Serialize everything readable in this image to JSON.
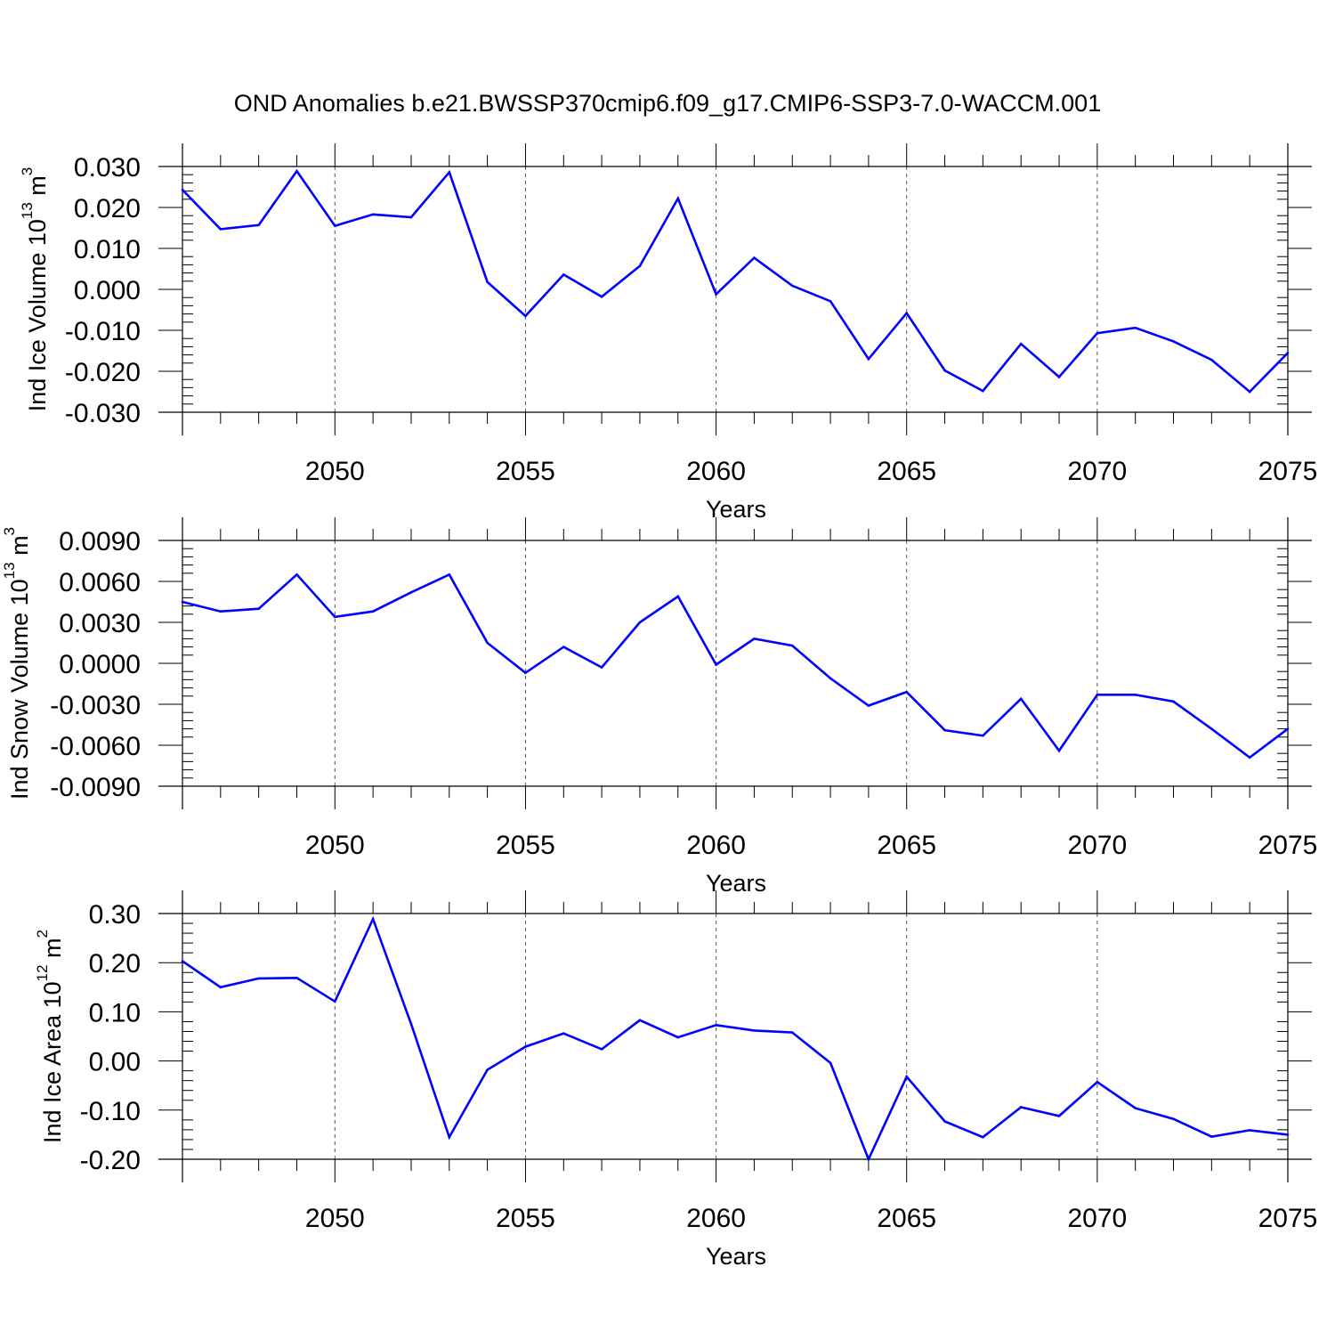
{
  "title": "OND Anomalies b.e21.BWSSP370cmip6.f09_g17.CMIP6-SSP3-7.0-WACCM.001",
  "colors": {
    "line": "#0000ff",
    "axis": "#000000",
    "grid": "#555555",
    "background": "#ffffff"
  },
  "chart_data": [
    {
      "type": "line",
      "ylabel_main": "Ind Ice Volume 10",
      "ylabel_exp": "13",
      "ylabel_unit": " m",
      "ylabel_unit_exp": "3",
      "xlabel": "Years",
      "xlim": [
        2046,
        2075
      ],
      "ylim": [
        -0.03,
        0.03
      ],
      "xticks": [
        "2050",
        "2055",
        "2060",
        "2065",
        "2070",
        "2075"
      ],
      "yticks": [
        "0.030",
        "0.020",
        "0.010",
        "0.000",
        "-0.010",
        "-0.020",
        "-0.030"
      ],
      "grid": "dashed vertical at labeled years",
      "x": [
        2046,
        2047,
        2048,
        2049,
        2050,
        2051,
        2052,
        2053,
        2054,
        2055,
        2056,
        2057,
        2058,
        2059,
        2060,
        2061,
        2062,
        2063,
        2064,
        2065,
        2066,
        2067,
        2068,
        2069,
        2070,
        2071,
        2072,
        2073,
        2074,
        2075
      ],
      "values": [
        0.0243,
        0.0147,
        0.0157,
        0.0289,
        0.0155,
        0.0183,
        0.0176,
        0.0286,
        0.0018,
        -0.0065,
        0.0036,
        -0.0018,
        0.0057,
        0.0222,
        -0.0012,
        0.0077,
        0.0009,
        -0.0029,
        -0.017,
        -0.0058,
        -0.0198,
        -0.0248,
        -0.0133,
        -0.0214,
        -0.0107,
        -0.0094,
        -0.0127,
        -0.0172,
        -0.025,
        -0.0155
      ]
    },
    {
      "type": "line",
      "ylabel_main": "Ind Snow Volume 10",
      "ylabel_exp": "13",
      "ylabel_unit": " m",
      "ylabel_unit_exp": "3",
      "xlabel": "Years",
      "xlim": [
        2046,
        2075
      ],
      "ylim": [
        -0.009,
        0.009
      ],
      "xticks": [
        "2050",
        "2055",
        "2060",
        "2065",
        "2070",
        "2075"
      ],
      "yticks": [
        "0.0090",
        "0.0060",
        "0.0030",
        "0.0000",
        "-0.0030",
        "-0.0060",
        "-0.0090"
      ],
      "grid": "dashed vertical at labeled years",
      "x": [
        2046,
        2047,
        2048,
        2049,
        2050,
        2051,
        2052,
        2053,
        2054,
        2055,
        2056,
        2057,
        2058,
        2059,
        2060,
        2061,
        2062,
        2063,
        2064,
        2065,
        2066,
        2067,
        2068,
        2069,
        2070,
        2071,
        2072,
        2073,
        2074,
        2075
      ],
      "values": [
        0.0045,
        0.0038,
        0.004,
        0.0065,
        0.0034,
        0.0038,
        0.0052,
        0.0065,
        0.0015,
        -0.0007,
        0.0012,
        -0.0003,
        0.003,
        0.0049,
        -0.0001,
        0.0018,
        0.0013,
        -0.0011,
        -0.0031,
        -0.0021,
        -0.0049,
        -0.0053,
        -0.0026,
        -0.0064,
        -0.0023,
        -0.0023,
        -0.0028,
        -0.0048,
        -0.0069,
        -0.0048
      ]
    },
    {
      "type": "line",
      "ylabel_main": "Ind Ice Area 10",
      "ylabel_exp": "12",
      "ylabel_unit": " m",
      "ylabel_unit_exp": "2",
      "xlabel": "Years",
      "xlim": [
        2046,
        2075
      ],
      "ylim": [
        -0.2,
        0.3
      ],
      "xticks": [
        "2050",
        "2055",
        "2060",
        "2065",
        "2070",
        "2075"
      ],
      "yticks": [
        "0.30",
        "0.20",
        "0.10",
        "0.00",
        "-0.10",
        "-0.20"
      ],
      "grid": "dashed vertical at labeled years",
      "x": [
        2046,
        2047,
        2048,
        2049,
        2050,
        2051,
        2052,
        2053,
        2054,
        2055,
        2056,
        2057,
        2058,
        2059,
        2060,
        2061,
        2062,
        2063,
        2064,
        2065,
        2066,
        2067,
        2068,
        2069,
        2070,
        2071,
        2072,
        2073,
        2074,
        2075
      ],
      "values": [
        0.203,
        0.15,
        0.168,
        0.169,
        0.121,
        0.289,
        0.075,
        -0.155,
        -0.018,
        0.029,
        0.056,
        0.024,
        0.083,
        0.048,
        0.073,
        0.062,
        0.058,
        -0.004,
        -0.2,
        -0.032,
        -0.123,
        -0.155,
        -0.094,
        -0.112,
        -0.043,
        -0.096,
        -0.118,
        -0.154,
        -0.141,
        -0.15
      ]
    }
  ]
}
